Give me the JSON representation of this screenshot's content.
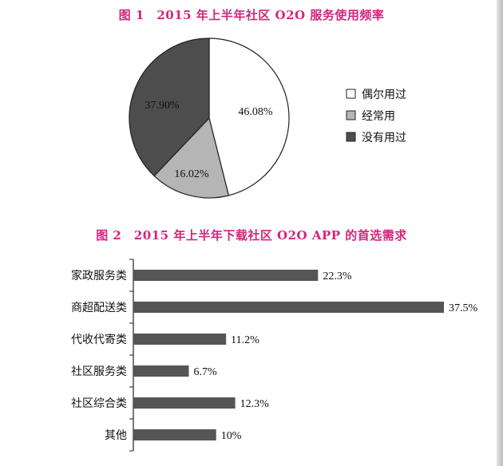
{
  "chart_data": [
    {
      "type": "pie",
      "title": "图 1　2015 年上半年社区 O2O 服务使用频率",
      "slices": [
        {
          "label": "偶尔用过",
          "value": 46.08,
          "display": "46.08%",
          "color": "#ffffff"
        },
        {
          "label": "经常用",
          "value": 16.02,
          "display": "16.02%",
          "color": "#b5b5b5"
        },
        {
          "label": "没有用过",
          "value": 37.9,
          "display": "37.90%",
          "color": "#4d4d4d"
        }
      ],
      "legend": {
        "placement": "right"
      }
    },
    {
      "type": "bar",
      "orientation": "horizontal",
      "title": "图 2　2015 年上半年下载社区 O2O APP 的首选需求",
      "categories": [
        "家政服务类",
        "商超配送类",
        "代收代寄类",
        "社区服务类",
        "社区综合类",
        "其他"
      ],
      "values": [
        22.3,
        37.5,
        11.2,
        6.7,
        12.3,
        10
      ],
      "value_labels": [
        "22.3%",
        "37.5%",
        "11.2%",
        "6.7%",
        "12.3%",
        "10%"
      ],
      "bar_color": "#555555"
    }
  ]
}
